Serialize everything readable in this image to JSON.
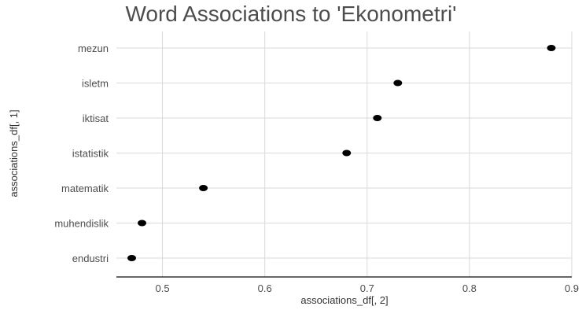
{
  "chart_data": {
    "type": "scatter",
    "title": "Word Associations to 'Ekonometri'",
    "xlabel": "associations_df[, 2]",
    "ylabel": "associations_df[, 1]",
    "xlim": [
      0.455,
      0.9
    ],
    "x_ticks": [
      0.5,
      0.6,
      0.7,
      0.8,
      0.9
    ],
    "x_tick_labels": [
      "0.5",
      "0.6",
      "0.7",
      "0.8",
      "0.9"
    ],
    "categories": [
      "mezun",
      "isletm",
      "iktisat",
      "istatistik",
      "matematik",
      "muhendislik",
      "endustri"
    ],
    "values": [
      0.88,
      0.73,
      0.71,
      0.68,
      0.54,
      0.48,
      0.47
    ],
    "grid": true,
    "point_color": "#000000",
    "grid_color": "#d9d9d9"
  }
}
